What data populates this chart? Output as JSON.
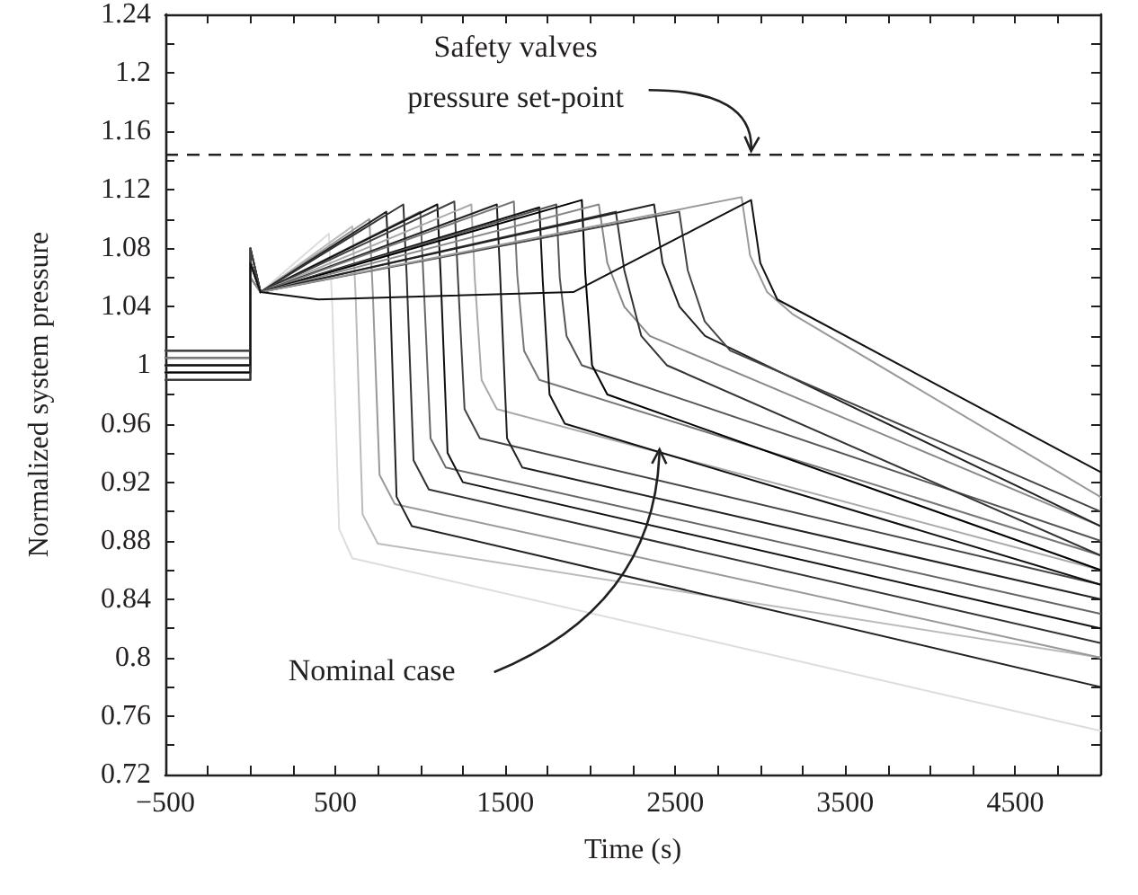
{
  "chart_data": {
    "type": "line",
    "xlabel": "Time (s)",
    "ylabel": "Normalized system pressure",
    "xlim": [
      -500,
      5000
    ],
    "ylim": [
      0.72,
      1.24
    ],
    "xticks": [
      {
        "value": -500,
        "label": "−500"
      },
      {
        "value": -250,
        "label": null
      },
      {
        "value": 0,
        "label": null
      },
      {
        "value": 250,
        "label": null
      },
      500,
      {
        "value": 750,
        "label": null
      },
      {
        "value": 1000,
        "label": null
      },
      {
        "value": 1250,
        "label": null
      },
      1500,
      {
        "value": 1750,
        "label": null
      },
      {
        "value": 2000,
        "label": null
      },
      {
        "value": 2250,
        "label": null
      },
      2500,
      {
        "value": 2750,
        "label": null
      },
      {
        "value": 3000,
        "label": null
      },
      {
        "value": 3250,
        "label": null
      },
      3500,
      {
        "value": 3750,
        "label": null
      },
      {
        "value": 4000,
        "label": null
      },
      {
        "value": 4250,
        "label": null
      },
      4500,
      {
        "value": 4750,
        "label": null
      }
    ],
    "yticks": [
      0.72,
      {
        "value": 0.74,
        "label": null
      },
      0.76,
      {
        "value": 0.78,
        "label": null
      },
      0.8,
      {
        "value": 0.82,
        "label": null
      },
      0.84,
      {
        "value": 0.86,
        "label": null
      },
      0.88,
      {
        "value": 0.9,
        "label": null
      },
      0.92,
      {
        "value": 0.94,
        "label": null
      },
      0.96,
      {
        "value": 0.98,
        "label": null
      },
      1,
      {
        "value": 1.02,
        "label": null
      },
      1.04,
      {
        "value": 1.06,
        "label": null
      },
      1.08,
      {
        "value": 1.1,
        "label": null
      },
      1.12,
      {
        "value": 1.14,
        "label": null
      },
      1.16,
      {
        "value": 1.18,
        "label": null
      },
      1.2,
      {
        "value": 1.22,
        "label": null
      },
      1.24
    ],
    "marker": "none",
    "line_style": "solid",
    "ref_lines": [
      {
        "axis": "y",
        "value": 1.144,
        "color": "#222222",
        "line_style": "dashed"
      }
    ],
    "annotations": [
      {
        "text": "Safety valves\npressure set-point",
        "x": 2946,
        "y": 1.144
      },
      {
        "text": "Nominal case",
        "x": 2407,
        "y": 0.94
      }
    ],
    "series": [
      {
        "color": "#dddddd",
        "x": [
          -500,
          0,
          0,
          60,
          462,
          482,
          522,
          600,
          5000
        ],
        "values": [
          1.0,
          1.0,
          1.07,
          1.05,
          1.09,
          1.04,
          0.888,
          0.868,
          0.75
        ]
      },
      {
        "color": "#bbbbbb",
        "x": [
          -500,
          0,
          0,
          60,
          600,
          620,
          660,
          750,
          5000
        ],
        "values": [
          0.99,
          0.99,
          1.06,
          1.05,
          1.095,
          1.045,
          0.898,
          0.878,
          0.8
        ]
      },
      {
        "color": "#999999",
        "x": [
          -500,
          0,
          0,
          60,
          700,
          720,
          760,
          850,
          5000
        ],
        "values": [
          1.01,
          1.01,
          1.07,
          1.05,
          1.1,
          1.05,
          0.925,
          0.905,
          0.8
        ]
      },
      {
        "color": "#222222",
        "x": [
          -500,
          0,
          0,
          60,
          800,
          820,
          860,
          950,
          5000
        ],
        "values": [
          0.995,
          0.995,
          1.08,
          1.05,
          1.105,
          1.055,
          0.91,
          0.89,
          0.78
        ]
      },
      {
        "color": "#333333",
        "x": [
          -500,
          0,
          0,
          60,
          900,
          920,
          960,
          1050,
          5000
        ],
        "values": [
          1.005,
          1.005,
          1.07,
          1.05,
          1.11,
          1.06,
          0.935,
          0.915,
          0.81
        ]
      },
      {
        "color": "#666666",
        "x": [
          -500,
          0,
          0,
          60,
          1000,
          1020,
          1060,
          1150,
          5000
        ],
        "values": [
          0.99,
          0.99,
          1.06,
          1.05,
          1.105,
          1.055,
          0.95,
          0.93,
          0.83
        ]
      },
      {
        "color": "#111111",
        "x": [
          -500,
          0,
          0,
          60,
          1100,
          1120,
          1160,
          1250,
          5000
        ],
        "values": [
          1.0,
          1.0,
          1.07,
          1.05,
          1.11,
          1.06,
          0.94,
          0.92,
          0.82
        ]
      },
      {
        "color": "#444444",
        "x": [
          -500,
          0,
          0,
          60,
          1200,
          1220,
          1260,
          1350,
          5000
        ],
        "values": [
          1.01,
          1.01,
          1.07,
          1.05,
          1.112,
          1.062,
          0.97,
          0.95,
          0.85
        ]
      },
      {
        "color": "#aaaaaa",
        "x": [
          -500,
          0,
          0,
          60,
          1300,
          1320,
          1360,
          1450,
          5000
        ],
        "values": [
          0.995,
          0.995,
          1.06,
          1.05,
          1.11,
          1.06,
          0.99,
          0.97,
          0.86
        ]
      },
      {
        "color": "#222222",
        "x": [
          -500,
          0,
          0,
          60,
          1450,
          1470,
          1510,
          1600,
          5000
        ],
        "values": [
          1.005,
          1.005,
          1.07,
          1.05,
          1.11,
          1.06,
          0.95,
          0.93,
          0.84
        ]
      },
      {
        "color": "#777777",
        "x": [
          -500,
          0,
          0,
          60,
          1550,
          1570,
          1610,
          1700,
          5000
        ],
        "values": [
          0.99,
          0.99,
          1.07,
          1.05,
          1.112,
          1.062,
          1.01,
          0.99,
          0.87
        ]
      },
      {
        "color": "#111111",
        "x": [
          -500,
          0,
          0,
          60,
          1700,
          1720,
          1760,
          1850,
          5000
        ],
        "values": [
          1.0,
          1.0,
          1.08,
          1.05,
          1.108,
          1.058,
          0.98,
          0.96,
          0.85
        ]
      },
      {
        "color": "#555555",
        "x": [
          -500,
          0,
          0,
          60,
          1800,
          1820,
          1860,
          1950,
          5000
        ],
        "values": [
          1.01,
          1.01,
          1.07,
          1.05,
          1.11,
          1.06,
          1.02,
          1.0,
          0.88
        ]
      },
      {
        "color": "#000000",
        "x": [
          -500,
          0,
          0,
          60,
          1950,
          1970,
          2010,
          2100,
          5000
        ],
        "values": [
          0.995,
          0.995,
          1.07,
          1.05,
          1.113,
          1.063,
          1.0,
          0.98,
          0.86
        ]
      },
      {
        "color": "#888888",
        "x": [
          -500,
          0,
          0,
          60,
          2050,
          2100,
          2200,
          2350,
          5000
        ],
        "values": [
          1.005,
          1.005,
          1.06,
          1.05,
          1.11,
          1.07,
          1.04,
          1.02,
          0.89
        ]
      },
      {
        "color": "#333333",
        "x": [
          -500,
          0,
          0,
          60,
          2150,
          2200,
          2300,
          2450,
          5000
        ],
        "values": [
          0.99,
          0.99,
          1.07,
          1.05,
          1.105,
          1.065,
          1.02,
          1.0,
          0.87
        ]
      },
      {
        "color": "#222222",
        "x": [
          -500,
          0,
          0,
          60,
          2375,
          2425,
          2525,
          2675,
          5000
        ],
        "values": [
          1.0,
          1.0,
          1.07,
          1.05,
          1.11,
          1.07,
          1.04,
          1.02,
          0.89
        ]
      },
      {
        "color": "#444444",
        "x": [
          -500,
          0,
          0,
          60,
          2523,
          2573,
          2673,
          2823,
          5000
        ],
        "values": [
          1.01,
          1.01,
          1.08,
          1.05,
          1.105,
          1.065,
          1.03,
          1.01,
          0.9
        ]
      },
      {
        "color": "#999999",
        "x": [
          -500,
          0,
          0,
          60,
          2890,
          2940,
          3040,
          3190,
          5000
        ],
        "values": [
          1.0,
          1.0,
          1.07,
          1.05,
          1.115,
          1.075,
          1.05,
          1.035,
          0.91
        ]
      },
      {
        "color": "#111111",
        "x": [
          -500,
          0,
          0,
          60,
          400,
          1900,
          2946,
          3000,
          3100,
          5000
        ],
        "values": [
          1.0,
          1.0,
          1.07,
          1.05,
          1.045,
          1.05,
          1.113,
          1.07,
          1.045,
          0.927
        ]
      }
    ]
  }
}
